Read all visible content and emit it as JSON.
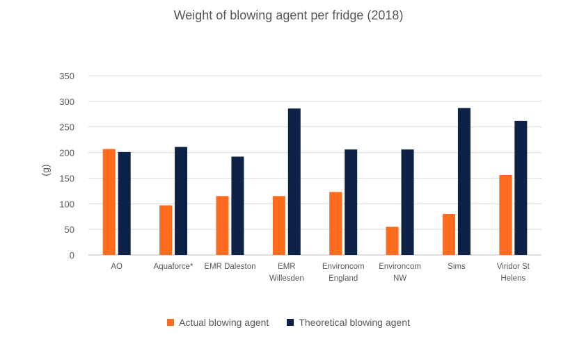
{
  "chart_data": {
    "type": "bar",
    "title": "Weight of blowing agent per fridge (2018)",
    "ylabel": "(g)",
    "xlabel": "",
    "ylim": [
      0,
      350
    ],
    "yticks": [
      0,
      50,
      100,
      150,
      200,
      250,
      300,
      350
    ],
    "grid": true,
    "legend_position": "bottom",
    "categories": [
      [
        "AO"
      ],
      [
        "Aquaforce*"
      ],
      [
        "EMR Daleston"
      ],
      [
        "EMR",
        "Willesden"
      ],
      [
        "Environcom",
        "England"
      ],
      [
        "Environcom",
        "NW"
      ],
      [
        "Sims"
      ],
      [
        "Viridor St",
        "Helens"
      ]
    ],
    "series": [
      {
        "name": "Actual blowing agent",
        "color": "#FF6B1F",
        "values": [
          207,
          97,
          115,
          115,
          123,
          55,
          80,
          156
        ]
      },
      {
        "name": "Theoretical blowing agent",
        "color": "#0E2147",
        "values": [
          201,
          211,
          192,
          286,
          206,
          206,
          287,
          262
        ]
      }
    ]
  }
}
